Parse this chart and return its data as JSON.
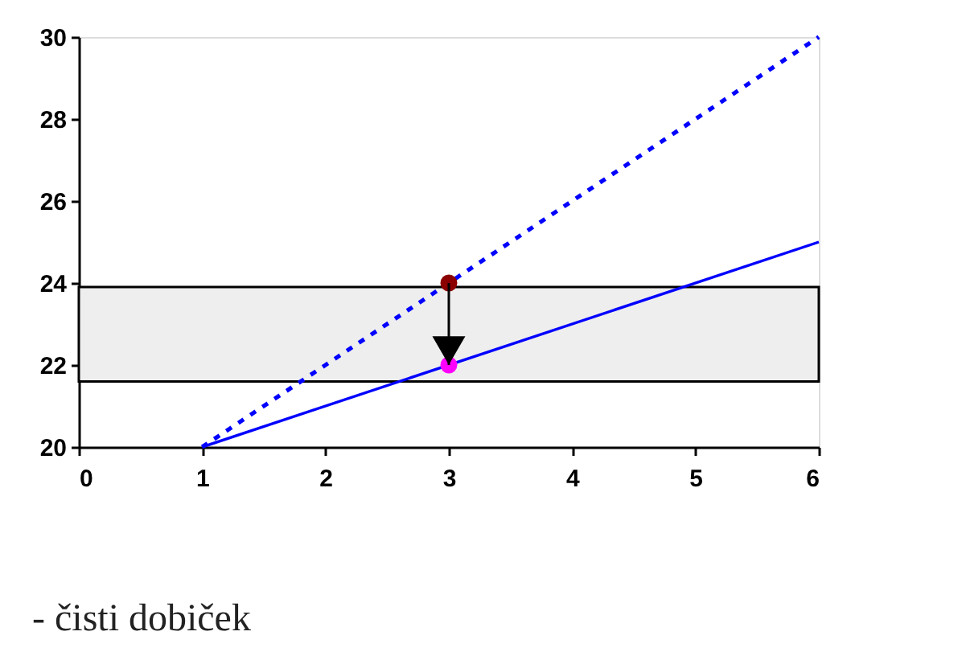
{
  "chart_data": {
    "type": "line",
    "xlim": [
      0,
      6
    ],
    "xticks": [
      0,
      1,
      2,
      3,
      4,
      5,
      6
    ],
    "ylim": [
      20,
      30
    ],
    "yticks": [
      20,
      22,
      24,
      26,
      28,
      30
    ],
    "grid": false,
    "series": [
      {
        "x": [
          1,
          6
        ],
        "values": [
          20,
          30
        ],
        "color": "#0000ff",
        "line_style": "dotted",
        "marker": "none"
      },
      {
        "x": [
          1,
          6
        ],
        "values": [
          20,
          25
        ],
        "color": "#0000ff",
        "line_style": "solid",
        "marker": "none"
      },
      {
        "type": "scatter",
        "x": [
          3
        ],
        "values": [
          24
        ],
        "color": "#8b0000",
        "marker": "circle"
      },
      {
        "type": "scatter",
        "x": [
          3
        ],
        "values": [
          22
        ],
        "color": "#ff00ff",
        "marker": "circle"
      }
    ],
    "bands": [
      {
        "axis": "y",
        "from": 21.6,
        "to": 23.9,
        "color": "#eeeeee"
      }
    ],
    "annotations": [
      "- čisti dobiček"
    ]
  }
}
